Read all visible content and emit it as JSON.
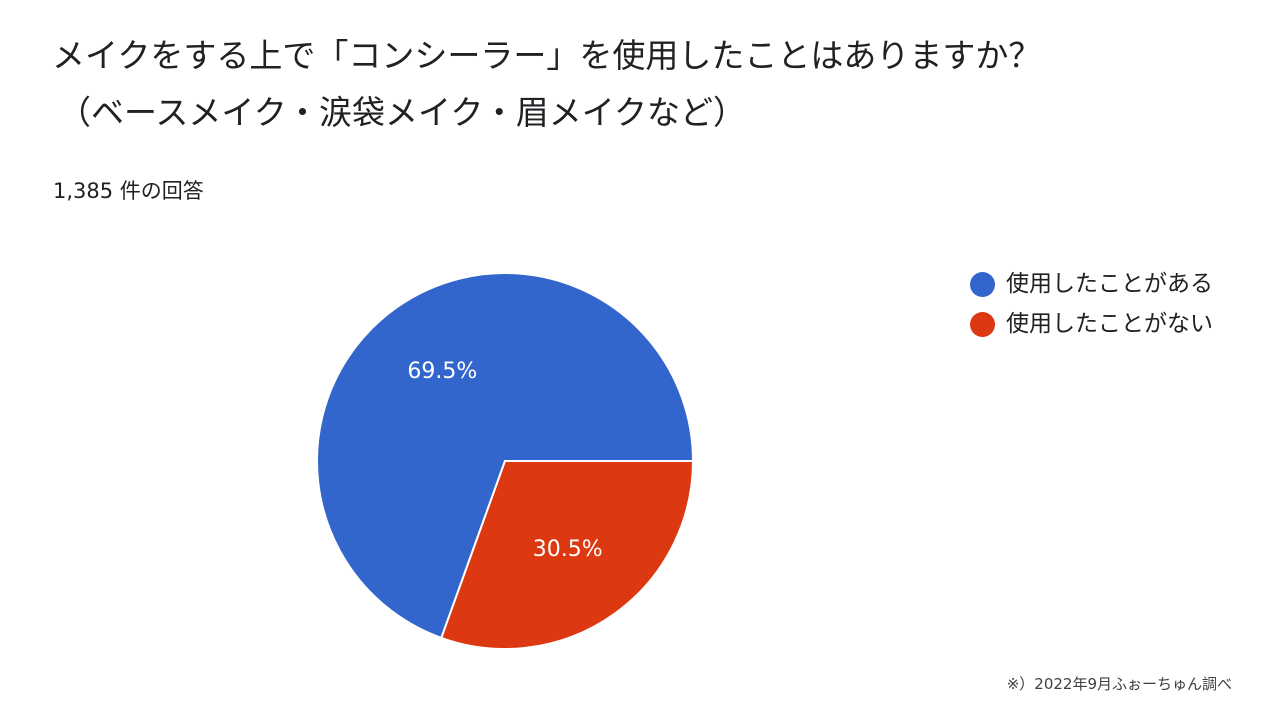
{
  "title": {
    "line1": "メイクをする上で「コンシーラー」を使用したことはありますか？",
    "line2": "（ベースメイク・涙袋メイク・眉メイクなど）"
  },
  "response_count": "1,385 件の回答",
  "footnote": "※）2022年9月ふぉーちゅん調べ",
  "colors": {
    "used": "#3366cc",
    "not_used": "#dc3912",
    "slice_label": "#ffffff"
  },
  "chart_data": {
    "type": "pie",
    "categories": [
      "使用したことがある",
      "使用したことがない"
    ],
    "values": [
      69.5,
      30.5
    ],
    "data_labels": [
      "69.5%",
      "30.5%"
    ],
    "total_responses": 1385,
    "legend_position": "right",
    "title": "メイクをする上で「コンシーラー」を使用したことはありますか？（ベースメイク・涙袋メイク・眉メイクなど）"
  }
}
